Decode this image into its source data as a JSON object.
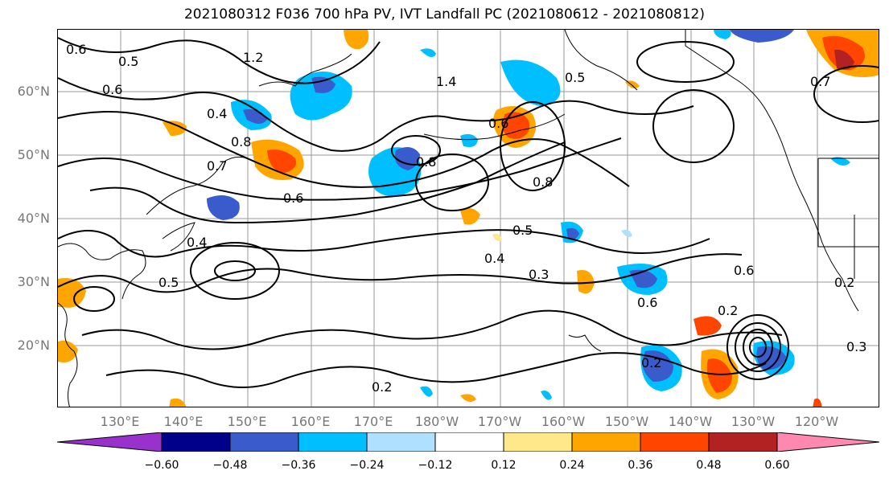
{
  "title": "2021080312 F036 700 hPa PV, IVT Landfall PC (2021080612 - 2021080812)",
  "lat_labels": [
    "60°N",
    "50°N",
    "40°N",
    "30°N",
    "20°N"
  ],
  "lon_labels": [
    "130°E",
    "140°E",
    "150°E",
    "160°E",
    "170°E",
    "180°W",
    "170°W",
    "160°W",
    "150°W",
    "140°W",
    "130°W",
    "120°W"
  ],
  "contour_labels": [
    "0.6",
    "0.5",
    "1.2",
    "1.4",
    "0.5",
    "0.6",
    "0.4",
    "0.8",
    "0.7",
    "0.6",
    "0.5",
    "0.8",
    "0.6",
    "0.4",
    "0.3",
    "0.4",
    "0.6",
    "0.5",
    "0.2",
    "0.2",
    "0.2",
    "0.2",
    "0.3",
    "0.6",
    "0.7",
    "0.8"
  ],
  "colorbar": {
    "tick_labels": [
      "−0.60",
      "−0.48",
      "−0.36",
      "−0.24",
      "−0.12",
      "0.12",
      "0.24",
      "0.36",
      "0.48",
      "0.60"
    ],
    "colors": [
      "#9932CC",
      "#00008B",
      "#3A5BCC",
      "#00BFFF",
      "#B0E0FF",
      "#FFFFFF",
      "#FFE88A",
      "#FFA500",
      "#FF4500",
      "#B22222",
      "#FF88B0"
    ]
  }
}
